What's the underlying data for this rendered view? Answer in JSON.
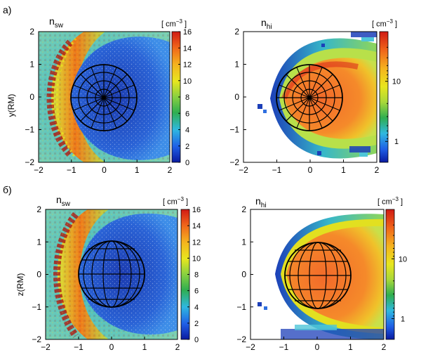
{
  "figure": {
    "rows": [
      {
        "label": "а)",
        "ylabel": "y(R",
        "ylabel_sub": "M",
        "ylabel_close": ")"
      },
      {
        "label": "б)",
        "ylabel": "z(R",
        "ylabel_sub": "M",
        "ylabel_close": ")"
      }
    ],
    "units": {
      "open": "[ cm",
      "exp": "−3",
      "close": "]"
    },
    "xticks": [
      "−2",
      "−1",
      "0",
      "1",
      "2"
    ],
    "yticks": [
      "2",
      "1",
      "0",
      "−1",
      "−2"
    ],
    "colors": {
      "deep_blue": "#1c3fb8",
      "blue": "#2f6fe0",
      "cyan": "#4fc6d8",
      "green": "#2fa84a",
      "yellow": "#e2e020",
      "orange": "#f08a1a",
      "red": "#d8241a",
      "dark_red": "#8a1010",
      "planet_orange": "#f07a2a",
      "grid_line": "#000000"
    }
  },
  "chart_data": [
    {
      "type": "heatmap",
      "panel": "a-left",
      "title": "n",
      "title_sub": "sw",
      "xlim": [
        -2,
        2
      ],
      "ylim": [
        -2,
        2
      ],
      "xlabel": "",
      "ylabel": "y(RM)",
      "colorbar": {
        "scale": "linear",
        "range": [
          0,
          16
        ],
        "ticks": [
          "16",
          "14",
          "12",
          "10",
          "8",
          "6",
          "4",
          "2",
          "0"
        ],
        "unit": "[ cm−3 ]"
      },
      "planet": {
        "center": [
          0,
          0
        ],
        "radius": 1
      }
    },
    {
      "type": "heatmap",
      "panel": "a-right",
      "title": "n",
      "title_sub": "hi",
      "xlim": [
        -2,
        2
      ],
      "ylim": [
        -2,
        2
      ],
      "xlabel": "",
      "ylabel": "",
      "colorbar": {
        "scale": "log",
        "ticks": [
          "10",
          "1"
        ],
        "unit": "[ cm−3 ]"
      },
      "planet": {
        "center": [
          0,
          0
        ],
        "radius": 1
      }
    },
    {
      "type": "heatmap",
      "panel": "b-left",
      "title": "n",
      "title_sub": "sw",
      "xlim": [
        -2,
        2
      ],
      "ylim": [
        -2,
        2
      ],
      "xlabel": "",
      "ylabel": "z(RM)",
      "colorbar": {
        "scale": "linear",
        "range": [
          0,
          16
        ],
        "ticks": [
          "16",
          "14",
          "12",
          "10",
          "8",
          "6",
          "4",
          "2",
          "0"
        ],
        "unit": "[ cm−3 ]"
      },
      "planet": {
        "center": [
          0,
          0
        ],
        "radius": 1
      }
    },
    {
      "type": "heatmap",
      "panel": "b-right",
      "title": "n",
      "title_sub": "hi",
      "xlim": [
        -2,
        2
      ],
      "ylim": [
        -2,
        2
      ],
      "xlabel": "",
      "ylabel": "",
      "colorbar": {
        "scale": "log",
        "ticks": [
          "10",
          "1"
        ],
        "unit": "[ cm−3 ]"
      },
      "planet": {
        "center": [
          0,
          0
        ],
        "radius": 1
      }
    }
  ]
}
